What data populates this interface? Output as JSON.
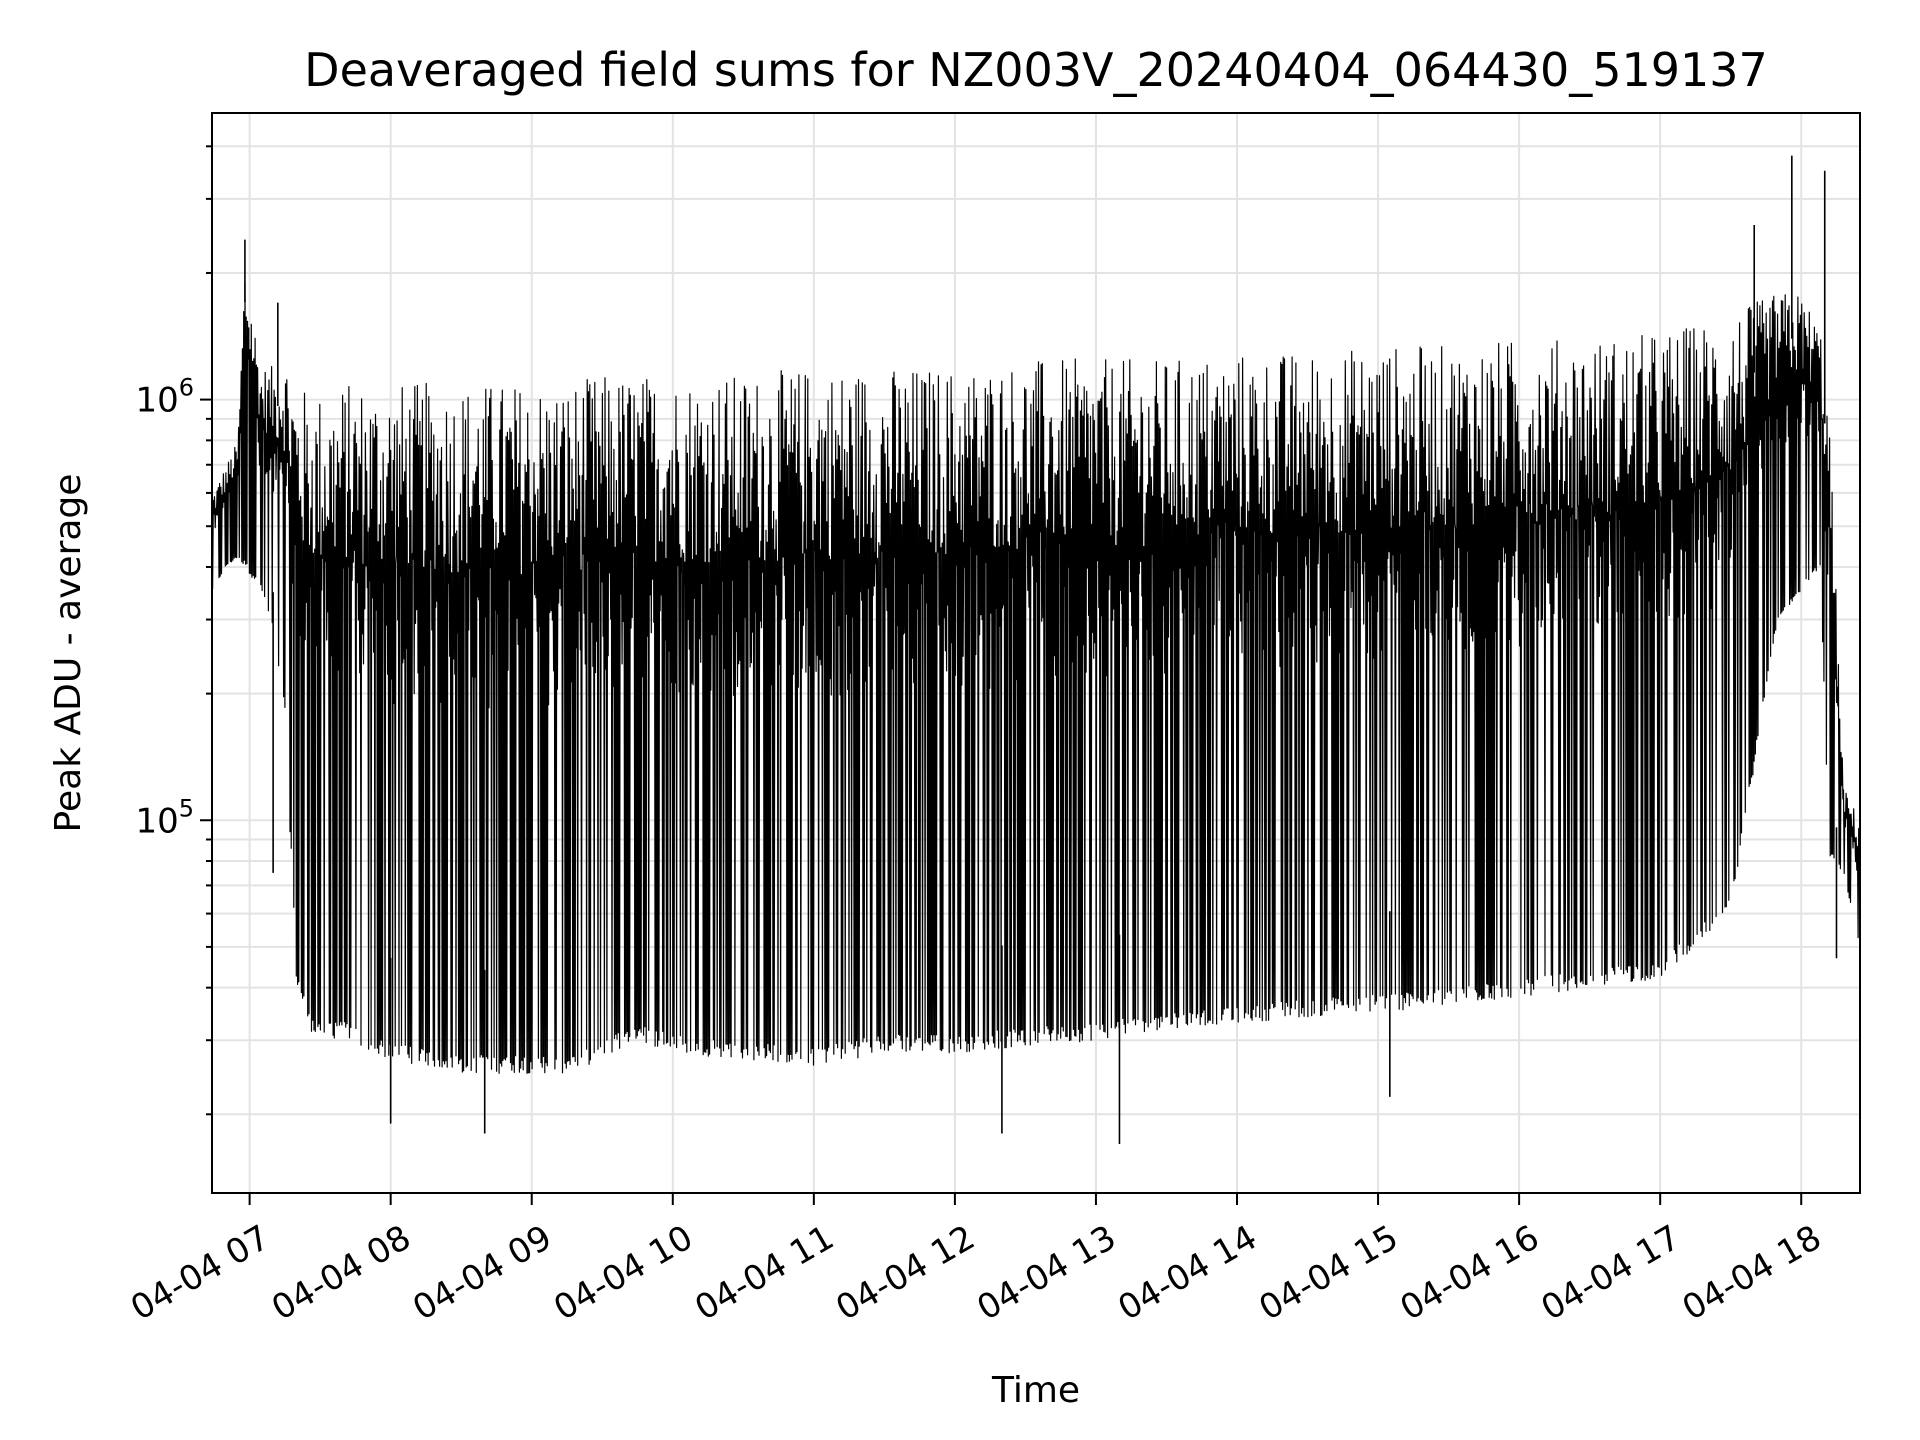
{
  "chart_data": {
    "type": "line",
    "title": "Deaveraged field sums for NZ003V_20240404_064430_519137",
    "xlabel": "Time",
    "ylabel": "Peak ADU - average",
    "yscale": "log",
    "ylim": [
      13000,
      4800000
    ],
    "xlim": [
      "2024-04-04 06:44",
      "2024-04-04 18:25"
    ],
    "grid": true,
    "line_color": "#000000",
    "x_ticks": [
      {
        "value": "2024-04-04 07:00",
        "label": "04-04 07"
      },
      {
        "value": "2024-04-04 08:00",
        "label": "04-04 08"
      },
      {
        "value": "2024-04-04 09:00",
        "label": "04-04 09"
      },
      {
        "value": "2024-04-04 10:00",
        "label": "04-04 10"
      },
      {
        "value": "2024-04-04 11:00",
        "label": "04-04 11"
      },
      {
        "value": "2024-04-04 12:00",
        "label": "04-04 12"
      },
      {
        "value": "2024-04-04 13:00",
        "label": "04-04 13"
      },
      {
        "value": "2024-04-04 14:00",
        "label": "04-04 14"
      },
      {
        "value": "2024-04-04 15:00",
        "label": "04-04 15"
      },
      {
        "value": "2024-04-04 16:00",
        "label": "04-04 16"
      },
      {
        "value": "2024-04-04 17:00",
        "label": "04-04 17"
      },
      {
        "value": "2024-04-04 18:00",
        "label": "04-04 18"
      }
    ],
    "y_ticks": [
      {
        "value": 100000,
        "base": "10",
        "exp": "5"
      },
      {
        "value": 1000000,
        "base": "10",
        "exp": "6"
      }
    ],
    "series": [
      {
        "x": [
          "2024-04-04 06:44",
          "2024-04-04 06:50",
          "2024-04-04 06:55",
          "2024-04-04 06:58",
          "2024-04-04 07:05",
          "2024-04-04 07:10",
          "2024-04-04 07:15",
          "2024-04-04 07:20",
          "2024-04-04 07:25",
          "2024-04-04 07:30",
          "2024-04-04 07:35",
          "2024-04-04 07:40",
          "2024-04-04 07:50",
          "2024-04-04 08:00",
          "2024-04-04 08:15",
          "2024-04-04 08:30",
          "2024-04-04 08:45",
          "2024-04-04 09:00",
          "2024-04-04 09:15",
          "2024-04-04 09:30",
          "2024-04-04 09:45",
          "2024-04-04 10:00",
          "2024-04-04 10:30",
          "2024-04-04 11:00",
          "2024-04-04 11:30",
          "2024-04-04 12:00",
          "2024-04-04 12:30",
          "2024-04-04 13:00",
          "2024-04-04 13:30",
          "2024-04-04 14:00",
          "2024-04-04 14:30",
          "2024-04-04 15:00",
          "2024-04-04 15:30",
          "2024-04-04 16:00",
          "2024-04-04 16:30",
          "2024-04-04 17:00",
          "2024-04-04 17:30",
          "2024-04-04 17:50",
          "2024-04-04 18:00",
          "2024-04-04 18:08",
          "2024-04-04 18:12",
          "2024-04-04 18:18",
          "2024-04-04 18:25"
        ],
        "min": [
          350000,
          400000,
          420000,
          400000,
          350000,
          280000,
          180000,
          40000,
          32000,
          30000,
          30000,
          31000,
          28000,
          27000,
          26000,
          25000,
          25000,
          25000,
          25000,
          27000,
          30000,
          28000,
          27000,
          26000,
          28000,
          28000,
          29000,
          30000,
          32000,
          33000,
          34000,
          35000,
          36000,
          38000,
          40000,
          42000,
          60000,
          300000,
          350000,
          400000,
          80000,
          75000,
          50000
        ],
        "max": [
          600000,
          700000,
          800000,
          2200000,
          1200000,
          1200000,
          1300000,
          1100000,
          1050000,
          1050000,
          1050000,
          1100000,
          1100000,
          1100000,
          1100000,
          1100000,
          1100000,
          1100000,
          1100000,
          1150000,
          1150000,
          1150000,
          1150000,
          1200000,
          1200000,
          1200000,
          1250000,
          1250000,
          1250000,
          1300000,
          1300000,
          1350000,
          1350000,
          1400000,
          1400000,
          1450000,
          1600000,
          1800000,
          1800000,
          1500000,
          900000,
          120000,
          100000
        ],
        "spikes_up": [
          {
            "x": "2024-04-04 06:58",
            "y": 2400000
          },
          {
            "x": "2024-04-04 07:12",
            "y": 1700000
          },
          {
            "x": "2024-04-04 17:40",
            "y": 2600000
          },
          {
            "x": "2024-04-04 17:56",
            "y": 3800000
          },
          {
            "x": "2024-04-04 18:10",
            "y": 3500000
          }
        ],
        "spikes_down": [
          {
            "x": "2024-04-04 07:10",
            "y": 75000
          },
          {
            "x": "2024-04-04 08:00",
            "y": 19000
          },
          {
            "x": "2024-04-04 08:40",
            "y": 18000
          },
          {
            "x": "2024-04-04 12:20",
            "y": 18000
          },
          {
            "x": "2024-04-04 13:10",
            "y": 17000
          },
          {
            "x": "2024-04-04 15:05",
            "y": 22000
          },
          {
            "x": "2024-04-04 18:15",
            "y": 47000
          }
        ]
      }
    ]
  }
}
